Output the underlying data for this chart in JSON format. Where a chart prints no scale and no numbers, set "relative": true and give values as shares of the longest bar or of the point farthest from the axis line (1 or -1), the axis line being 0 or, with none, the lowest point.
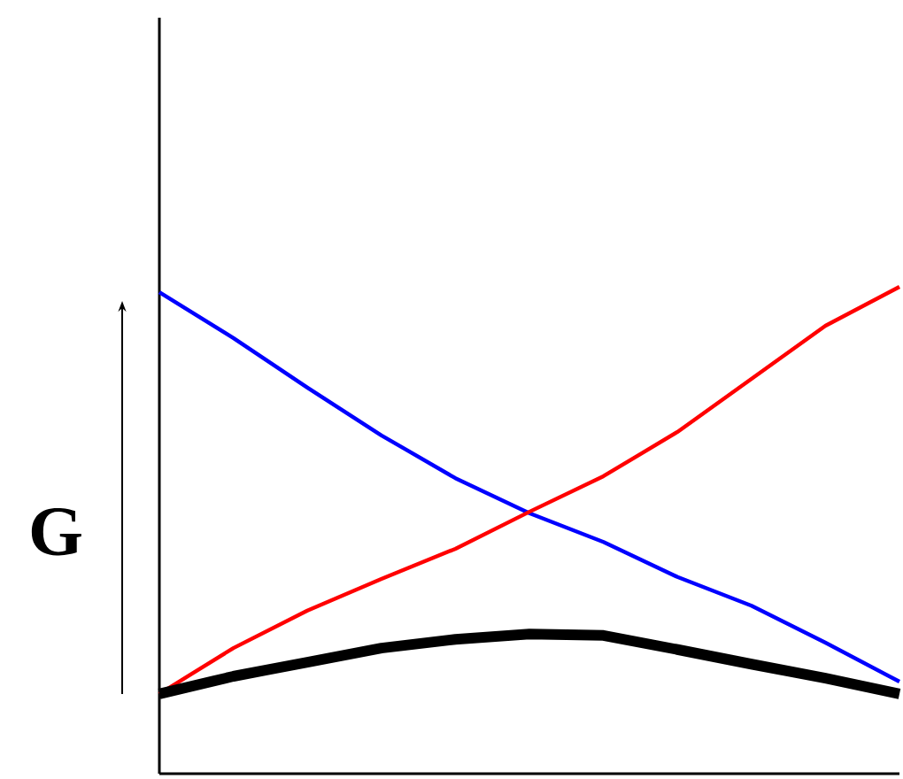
{
  "chart_data": {
    "type": "line",
    "ylabel": "G",
    "relative": true,
    "categories": [
      null,
      null,
      null,
      null,
      null,
      null,
      null,
      null,
      null,
      null,
      null
    ],
    "marker": "none",
    "line_style": "solid",
    "series": [
      {
        "color": "#0000ff",
        "values": [
          0.989,
          0.895,
          0.793,
          0.695,
          0.607,
          0.535,
          0.476,
          0.404,
          0.345,
          0.269,
          0.189
        ]
      },
      {
        "color": "#ff0000",
        "values": [
          0.164,
          0.258,
          0.335,
          0.4,
          0.462,
          0.538,
          0.611,
          0.702,
          0.811,
          0.92,
          1
        ]
      },
      {
        "color": "#000000",
        "values": [
          0.164,
          0.2,
          0.229,
          0.258,
          0.276,
          0.287,
          0.284,
          0.255,
          0.225,
          0.196,
          0.164
        ]
      }
    ]
  }
}
